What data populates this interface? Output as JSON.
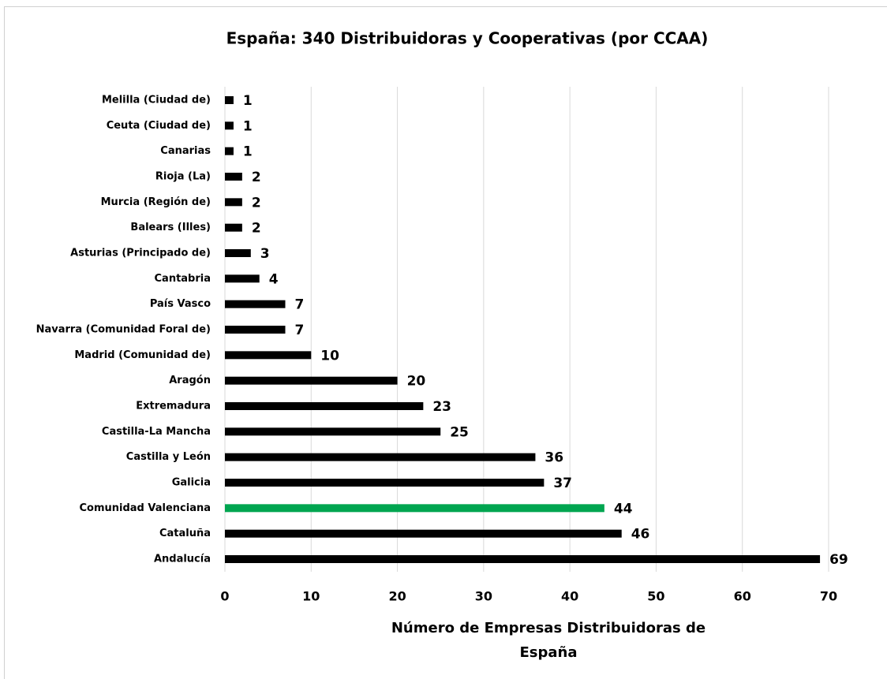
{
  "chart_data": {
    "type": "barh",
    "title": "España: 340 Distribuidoras y Cooperativas (por CCAA)",
    "xlabel": [
      "Número de Empresas Distribuidoras de",
      "España"
    ],
    "categories": [
      "Melilla (Ciudad de)",
      "Ceuta (Ciudad de)",
      "Canarias",
      "Rioja (La)",
      "Murcia (Región de)",
      "Balears (Illes)",
      "Asturias (Principado de)",
      "Cantabria",
      "País Vasco",
      "Navarra (Comunidad Foral de)",
      "Madrid (Comunidad de)",
      "Aragón",
      "Extremadura",
      "Castilla-La Mancha",
      "Castilla y León",
      "Galicia",
      "Comunidad Valenciana",
      "Cataluña",
      "Andalucía"
    ],
    "values": [
      1,
      1,
      1,
      2,
      2,
      2,
      3,
      4,
      7,
      7,
      10,
      20,
      23,
      25,
      36,
      37,
      44,
      46,
      69
    ],
    "colors": [
      "#000000",
      "#000000",
      "#000000",
      "#000000",
      "#000000",
      "#000000",
      "#000000",
      "#000000",
      "#000000",
      "#000000",
      "#000000",
      "#000000",
      "#000000",
      "#000000",
      "#000000",
      "#000000",
      "#00a550",
      "#000000",
      "#000000"
    ],
    "xlim": [
      0,
      70
    ],
    "xticks": [
      0,
      10,
      20,
      30,
      40,
      50,
      60,
      70
    ],
    "grid": true
  }
}
